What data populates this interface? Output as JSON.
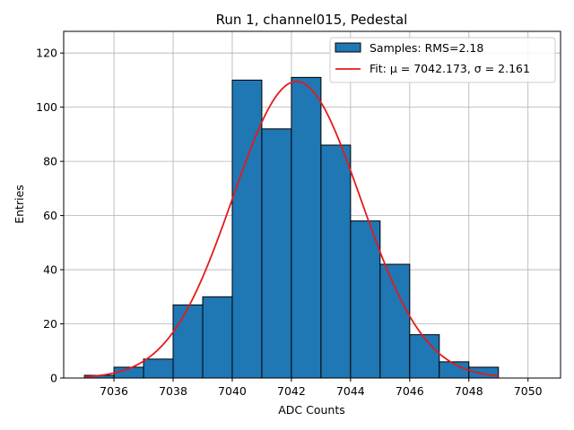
{
  "chart_data": {
    "type": "bar",
    "title": "Run 1, channel015, Pedestal",
    "xlabel": "ADC Counts",
    "ylabel": "Entries",
    "xlim": [
      7034.3,
      7051.1
    ],
    "ylim": [
      0,
      128
    ],
    "grid": true,
    "bin_edges": [
      7035,
      7036,
      7037,
      7038,
      7039,
      7040,
      7041,
      7042,
      7043,
      7044,
      7045,
      7046,
      7047,
      7048,
      7049,
      7050
    ],
    "values": [
      1,
      4,
      7,
      27,
      30,
      110,
      92,
      111,
      86,
      58,
      42,
      16,
      6,
      4,
      0
    ],
    "x_ticks": [
      7036,
      7038,
      7040,
      7042,
      7044,
      7046,
      7048,
      7050
    ],
    "y_ticks": [
      0,
      20,
      40,
      60,
      80,
      100,
      120
    ],
    "fit": {
      "mu": 7042.173,
      "sigma": 2.161,
      "amplitude": 109.5,
      "x_range": [
        7035,
        7049
      ]
    },
    "legend": {
      "position": "top-right",
      "entries": [
        {
          "label": "Samples: RMS=2.18",
          "kind": "patch",
          "color": "#1f77b4"
        },
        {
          "label": "Fit: μ = 7042.173, σ = 2.161",
          "kind": "line",
          "color": "#e41a1c"
        }
      ]
    },
    "colors": {
      "bar_fill": "#1f77b4",
      "bar_edge": "#000000",
      "fit_line": "#e41a1c",
      "grid": "#b0b0b0"
    }
  }
}
